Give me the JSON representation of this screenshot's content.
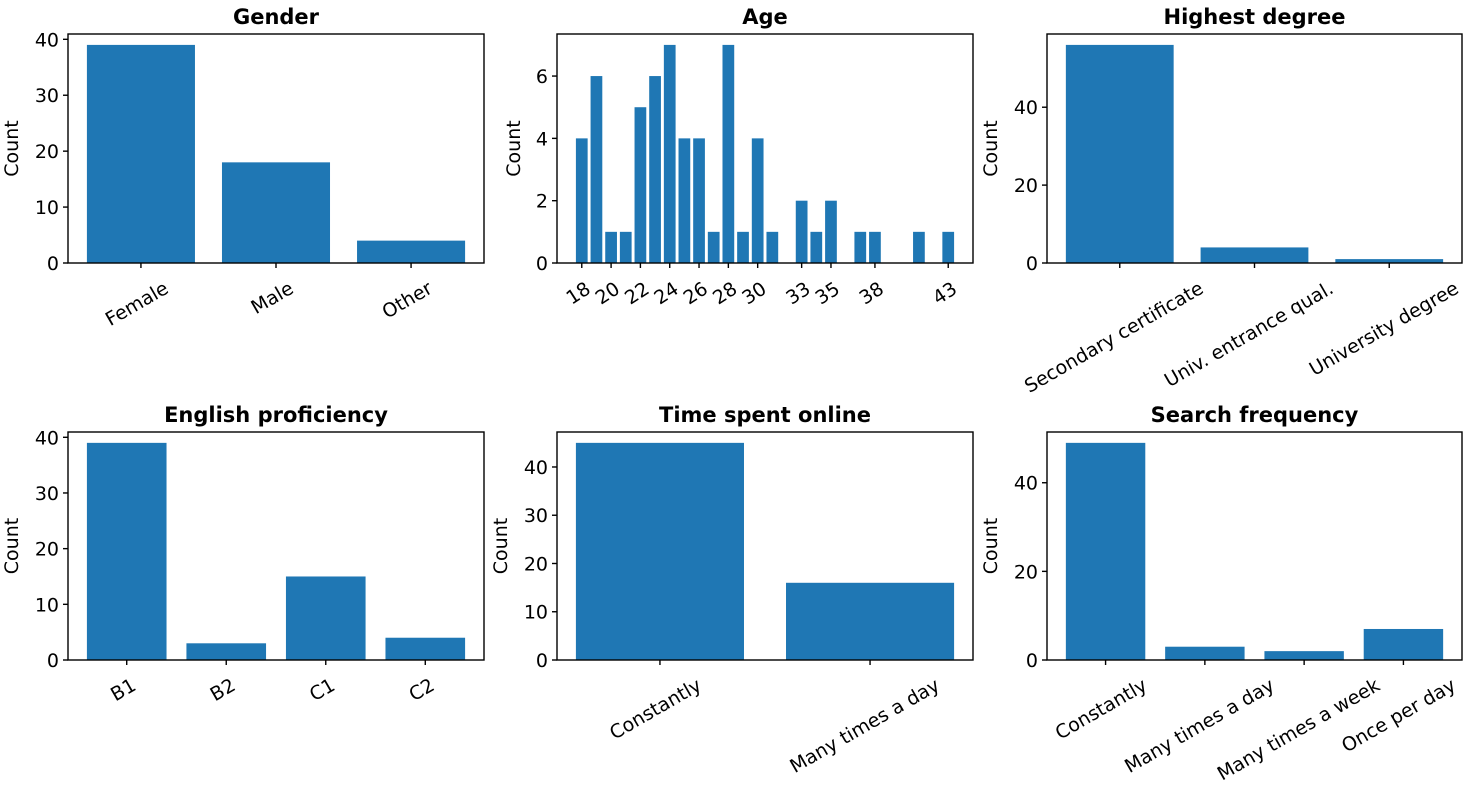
{
  "figure": {
    "background": "#ffffff",
    "bar_color": "#1f77b4",
    "axis_color": "#000000"
  },
  "chart_data": [
    {
      "type": "bar",
      "title": "Gender",
      "ylabel": "Count",
      "categories": [
        "Female",
        "Male",
        "Other"
      ],
      "values": [
        39,
        18,
        4
      ],
      "yticks": [
        0,
        10,
        20,
        30,
        40
      ],
      "ylim": [
        0,
        40.95
      ],
      "xtick_rotation": 30,
      "grid": false,
      "legend": "none"
    },
    {
      "type": "bar",
      "title": "Age",
      "ylabel": "Count",
      "x": [
        18,
        19,
        20,
        21,
        22,
        23,
        24,
        25,
        26,
        27,
        28,
        29,
        30,
        31,
        33,
        34,
        35,
        37,
        38,
        41,
        43
      ],
      "values": [
        4,
        6,
        1,
        1,
        5,
        6,
        7,
        4,
        4,
        1,
        7,
        1,
        4,
        1,
        2,
        1,
        2,
        1,
        1,
        1,
        1
      ],
      "xticks": [
        18,
        20,
        22,
        24,
        26,
        28,
        30,
        33,
        35,
        38,
        43
      ],
      "yticks": [
        0,
        2,
        4,
        6
      ],
      "ylim": [
        0,
        7.35
      ],
      "xtick_rotation": 33,
      "grid": false,
      "legend": "none"
    },
    {
      "type": "bar",
      "title": "Highest degree",
      "ylabel": "Count",
      "categories": [
        "Secondary certificate",
        "Univ. entrance qual.",
        "University degree"
      ],
      "values": [
        56,
        4,
        1
      ],
      "yticks": [
        0,
        20,
        40
      ],
      "ylim": [
        0,
        58.8
      ],
      "xtick_rotation": 30,
      "grid": false,
      "legend": "none"
    },
    {
      "type": "bar",
      "title": "English proficiency",
      "ylabel": "Count",
      "categories": [
        "B1",
        "B2",
        "C1",
        "C2"
      ],
      "values": [
        39,
        3,
        15,
        4
      ],
      "yticks": [
        0,
        10,
        20,
        30,
        40
      ],
      "ylim": [
        0,
        40.95
      ],
      "xtick_rotation": 30,
      "grid": false,
      "legend": "none"
    },
    {
      "type": "bar",
      "title": "Time spent online",
      "ylabel": "Count",
      "categories": [
        "Constantly",
        "Many times a day"
      ],
      "values": [
        45,
        16
      ],
      "yticks": [
        0,
        10,
        20,
        30,
        40
      ],
      "ylim": [
        0,
        47.25
      ],
      "xtick_rotation": 30,
      "grid": false,
      "legend": "none"
    },
    {
      "type": "bar",
      "title": "Search frequency",
      "ylabel": "Count",
      "categories": [
        "Constantly",
        "Many times a day",
        "Many times a week",
        "Once per day"
      ],
      "values": [
        49,
        3,
        2,
        7
      ],
      "yticks": [
        0,
        20,
        40
      ],
      "ylim": [
        0,
        51.45
      ],
      "xtick_rotation": 30,
      "grid": false,
      "legend": "none"
    }
  ]
}
